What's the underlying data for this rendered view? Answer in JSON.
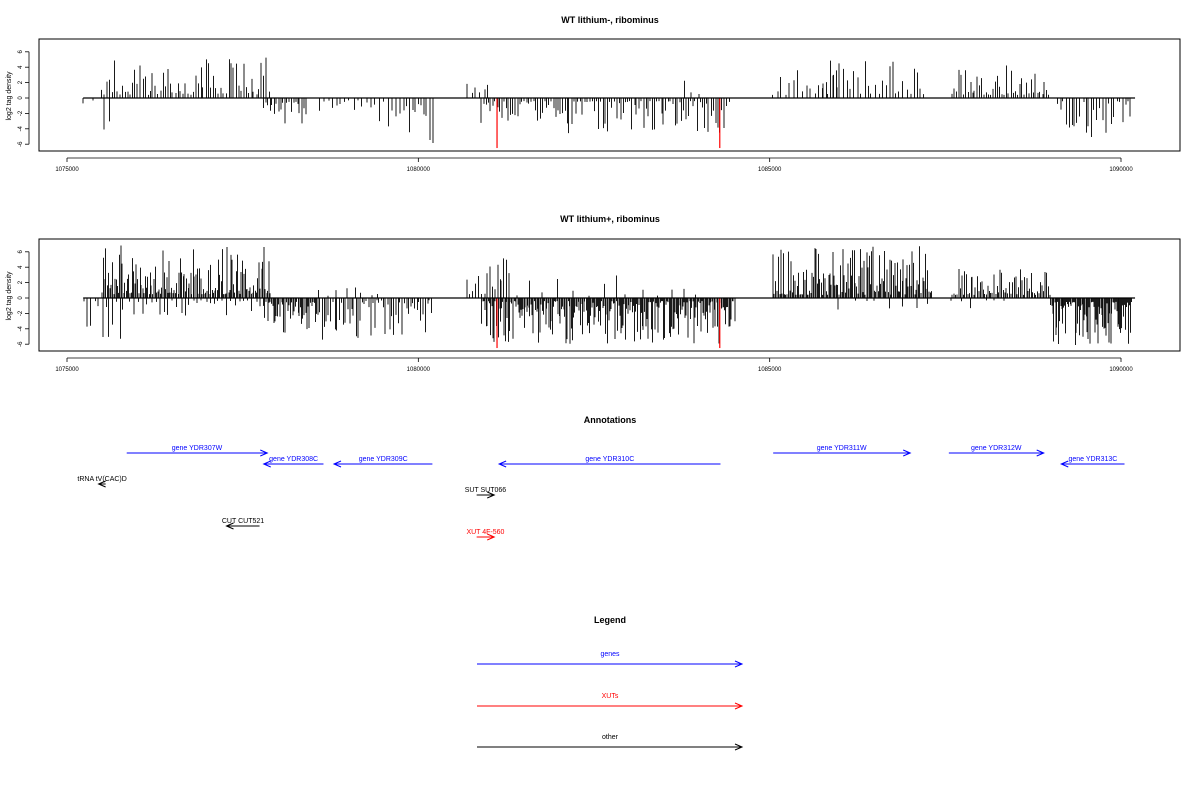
{
  "chart_data": [
    {
      "type": "bar",
      "title": "WT lithium-, ribominus",
      "ylabel": "log2 tag density",
      "xlim": [
        1075000,
        1090000
      ],
      "ylim": [
        -6,
        6
      ],
      "x_ticks": [
        1075000,
        1080000,
        1085000,
        1090000
      ],
      "x_tick_labels": [
        "1075000",
        "1080000",
        "1085000",
        "1090000"
      ],
      "y_ticks": [
        -6,
        -4,
        -2,
        0,
        2,
        4,
        6
      ],
      "y_tick_labels": [
        "-6",
        "-4",
        "-2",
        "0",
        "2",
        "4",
        "6"
      ],
      "baseline_range": [
        1075230,
        1090200
      ],
      "highlight_marks": [
        {
          "x": 1081120,
          "value": -6.5,
          "color": "#ff0000"
        },
        {
          "x": 1084290,
          "value": -6.5,
          "color": "#ff0000"
        }
      ],
      "bar_color": "#000000",
      "regions": [
        {
          "start": 1075250,
          "end": 1075700,
          "step": 130,
          "sign": -1,
          "min": 0.3,
          "max": 5.6,
          "seed": 11
        },
        {
          "start": 1075500,
          "end": 1077900,
          "step": 36,
          "sign": 1,
          "min": 0.4,
          "max": 5.3,
          "seed": 12
        },
        {
          "start": 1077800,
          "end": 1078400,
          "step": 30,
          "sign": -1,
          "min": 0.5,
          "max": 4.3,
          "seed": 13
        },
        {
          "start": 1078600,
          "end": 1079800,
          "step": 60,
          "sign": -1,
          "min": 0.3,
          "max": 4.8,
          "seed": 14
        },
        {
          "start": 1079800,
          "end": 1080200,
          "step": 40,
          "sign": -1,
          "min": 0.8,
          "max": 6.0,
          "seed": 15
        },
        {
          "start": 1080700,
          "end": 1081000,
          "step": 60,
          "sign": 1,
          "min": 0.5,
          "max": 3.0,
          "seed": 16
        },
        {
          "start": 1080900,
          "end": 1084450,
          "step": 32,
          "sign": -1,
          "min": 0.4,
          "max": 4.6,
          "seed": 17
        },
        {
          "start": 1083800,
          "end": 1084000,
          "step": 100,
          "sign": 1,
          "min": 0.5,
          "max": 2.6,
          "seed": 18
        },
        {
          "start": 1085050,
          "end": 1086000,
          "step": 60,
          "sign": 1,
          "min": 0.4,
          "max": 3.8,
          "seed": 19
        },
        {
          "start": 1085700,
          "end": 1087200,
          "step": 50,
          "sign": 1,
          "min": 0.5,
          "max": 5.2,
          "seed": 20
        },
        {
          "start": 1087600,
          "end": 1089000,
          "step": 32,
          "sign": 1,
          "min": 0.4,
          "max": 4.6,
          "seed": 21
        },
        {
          "start": 1089100,
          "end": 1090150,
          "step": 40,
          "sign": -1,
          "min": 0.4,
          "max": 5.2,
          "seed": 22
        }
      ]
    },
    {
      "type": "bar",
      "title": "WT lithium+, ribominus",
      "ylabel": "log2 tag density",
      "xlim": [
        1075000,
        1090000
      ],
      "ylim": [
        -6,
        6
      ],
      "x_ticks": [
        1075000,
        1080000,
        1085000,
        1090000
      ],
      "x_tick_labels": [
        "1075000",
        "1080000",
        "1085000",
        "1090000"
      ],
      "y_ticks": [
        -6,
        -4,
        -2,
        0,
        2,
        4,
        6
      ],
      "y_tick_labels": [
        "-6",
        "-4",
        "-2",
        "0",
        "2",
        "4",
        "6"
      ],
      "baseline_range": [
        1075230,
        1090200
      ],
      "highlight_marks": [
        {
          "x": 1081120,
          "value": -6.5,
          "color": "#ff0000"
        },
        {
          "x": 1084290,
          "value": -6.5,
          "color": "#ff0000"
        }
      ],
      "bar_color": "#000000",
      "regions": [
        {
          "start": 1075250,
          "end": 1075800,
          "step": 50,
          "sign": -1,
          "min": 0.4,
          "max": 5.4,
          "seed": 31
        },
        {
          "start": 1075500,
          "end": 1077900,
          "step": 18,
          "sign": 1,
          "min": 0.5,
          "max": 7.0,
          "seed": 32
        },
        {
          "start": 1075900,
          "end": 1077900,
          "step": 60,
          "sign": -1,
          "min": 0.3,
          "max": 2.6,
          "seed": 33
        },
        {
          "start": 1077800,
          "end": 1078600,
          "step": 18,
          "sign": -1,
          "min": 0.5,
          "max": 4.5,
          "seed": 34
        },
        {
          "start": 1078600,
          "end": 1080200,
          "step": 30,
          "sign": -1,
          "min": 0.3,
          "max": 5.8,
          "seed": 35
        },
        {
          "start": 1078600,
          "end": 1079500,
          "step": 120,
          "sign": 1,
          "min": 0.3,
          "max": 2.8,
          "seed": 36
        },
        {
          "start": 1080700,
          "end": 1081300,
          "step": 40,
          "sign": 1,
          "min": 0.5,
          "max": 5.2,
          "seed": 37
        },
        {
          "start": 1080900,
          "end": 1084500,
          "step": 16,
          "sign": -1,
          "min": 0.4,
          "max": 6.0,
          "seed": 38
        },
        {
          "start": 1081200,
          "end": 1084000,
          "step": 200,
          "sign": 1,
          "min": 0.3,
          "max": 3.5,
          "seed": 39
        },
        {
          "start": 1085050,
          "end": 1087300,
          "step": 18,
          "sign": 1,
          "min": 0.4,
          "max": 6.8,
          "seed": 40
        },
        {
          "start": 1086000,
          "end": 1087300,
          "step": 180,
          "sign": -1,
          "min": 0.3,
          "max": 1.5,
          "seed": 41
        },
        {
          "start": 1087600,
          "end": 1089000,
          "step": 22,
          "sign": 1,
          "min": 0.4,
          "max": 3.8,
          "seed": 42
        },
        {
          "start": 1087600,
          "end": 1088400,
          "step": 150,
          "sign": -1,
          "min": 0.3,
          "max": 2.0,
          "seed": 43
        },
        {
          "start": 1089000,
          "end": 1090150,
          "step": 14,
          "sign": -1,
          "min": 0.5,
          "max": 6.2,
          "seed": 44
        }
      ]
    }
  ],
  "annotations": {
    "title": "Annotations",
    "features": [
      {
        "label": "gene YDR307W",
        "start": 1075850,
        "end": 1077850,
        "row": 0,
        "color": "#0000ff",
        "strand": "+"
      },
      {
        "label": "gene YDR308C",
        "start": 1077800,
        "end": 1078650,
        "row": 1,
        "color": "#0000ff",
        "strand": "-"
      },
      {
        "label": "gene YDR309C",
        "start": 1078800,
        "end": 1080200,
        "row": 1,
        "color": "#0000ff",
        "strand": "-"
      },
      {
        "label": "gene YDR310C",
        "start": 1081150,
        "end": 1084300,
        "row": 1,
        "color": "#0000ff",
        "strand": "-"
      },
      {
        "label": "gene YDR311W",
        "start": 1085050,
        "end": 1087000,
        "row": 0,
        "color": "#0000ff",
        "strand": "+"
      },
      {
        "label": "gene YDR312W",
        "start": 1087550,
        "end": 1088900,
        "row": 0,
        "color": "#0000ff",
        "strand": "+"
      },
      {
        "label": "gene YDR313C",
        "start": 1089150,
        "end": 1090050,
        "row": 1,
        "color": "#0000ff",
        "strand": "-"
      },
      {
        "label": "tRNA tV(CAC)D",
        "start": 1075450,
        "end": 1075550,
        "row": 2,
        "color": "#000000",
        "strand": "-"
      },
      {
        "label": "SUT SUT066",
        "start": 1080830,
        "end": 1081080,
        "row": 3,
        "color": "#000000",
        "strand": "+"
      },
      {
        "label": "CUT CUT521",
        "start": 1077270,
        "end": 1077740,
        "row": 4,
        "color": "#000000",
        "strand": "-"
      },
      {
        "label": "XUT 4F-560",
        "start": 1080830,
        "end": 1081080,
        "row": 5,
        "color": "#ff0000",
        "strand": "+"
      }
    ]
  },
  "legend": {
    "title": "Legend",
    "items": [
      {
        "label": "genes",
        "color": "#0000ff"
      },
      {
        "label": "XUTs",
        "color": "#ff0000"
      },
      {
        "label": "other",
        "color": "#000000"
      }
    ]
  }
}
